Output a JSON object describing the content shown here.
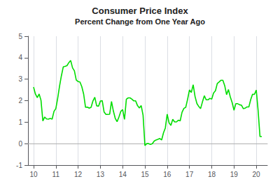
{
  "chart_data": {
    "type": "line",
    "title": "Consumer Price Index",
    "subtitle": "Percent Change from One Year Ago",
    "color": "#00dd00",
    "grid": "x",
    "xlim": [
      2009.75,
      2020.5
    ],
    "xticks": [
      {
        "value": 2010,
        "label": "10"
      },
      {
        "value": 2011,
        "label": "11"
      },
      {
        "value": 2012,
        "label": "12"
      },
      {
        "value": 2013,
        "label": "13"
      },
      {
        "value": 2014,
        "label": "14"
      },
      {
        "value": 2015,
        "label": "15"
      },
      {
        "value": 2016,
        "label": "16"
      },
      {
        "value": 2017,
        "label": "17"
      },
      {
        "value": 2018,
        "label": "18"
      },
      {
        "value": 2019,
        "label": "19"
      },
      {
        "value": 2020,
        "label": "20"
      }
    ],
    "ylim": [
      -1,
      5
    ],
    "yticks": [
      -1,
      0,
      1,
      2,
      3,
      4,
      5
    ],
    "x": [
      2010.0,
      2010.083,
      2010.167,
      2010.25,
      2010.333,
      2010.417,
      2010.5,
      2010.583,
      2010.667,
      2010.75,
      2010.833,
      2010.917,
      2011.0,
      2011.083,
      2011.167,
      2011.25,
      2011.333,
      2011.417,
      2011.5,
      2011.583,
      2011.667,
      2011.75,
      2011.833,
      2011.917,
      2012.0,
      2012.083,
      2012.167,
      2012.25,
      2012.333,
      2012.417,
      2012.5,
      2012.583,
      2012.667,
      2012.75,
      2012.833,
      2012.917,
      2013.0,
      2013.083,
      2013.167,
      2013.25,
      2013.333,
      2013.417,
      2013.5,
      2013.583,
      2013.667,
      2013.75,
      2013.833,
      2013.917,
      2014.0,
      2014.083,
      2014.167,
      2014.25,
      2014.333,
      2014.417,
      2014.5,
      2014.583,
      2014.667,
      2014.75,
      2014.833,
      2014.917,
      2015.0,
      2015.083,
      2015.167,
      2015.25,
      2015.333,
      2015.417,
      2015.5,
      2015.583,
      2015.667,
      2015.75,
      2015.833,
      2015.917,
      2016.0,
      2016.083,
      2016.167,
      2016.25,
      2016.333,
      2016.417,
      2016.5,
      2016.583,
      2016.667,
      2016.75,
      2016.833,
      2016.917,
      2017.0,
      2017.083,
      2017.167,
      2017.25,
      2017.333,
      2017.417,
      2017.5,
      2017.583,
      2017.667,
      2017.75,
      2017.833,
      2017.917,
      2018.0,
      2018.083,
      2018.167,
      2018.25,
      2018.333,
      2018.417,
      2018.5,
      2018.583,
      2018.667,
      2018.75,
      2018.833,
      2018.917,
      2019.0,
      2019.083,
      2019.167,
      2019.25,
      2019.333,
      2019.417,
      2019.5,
      2019.583,
      2019.667,
      2019.75,
      2019.833,
      2019.917,
      2020.0,
      2020.083,
      2020.167,
      2020.25
    ],
    "values": [
      2.63,
      2.31,
      2.14,
      2.31,
      2.02,
      1.05,
      1.24,
      1.15,
      1.14,
      1.17,
      1.14,
      1.5,
      1.63,
      2.11,
      2.68,
      3.16,
      3.57,
      3.6,
      3.63,
      3.77,
      3.87,
      3.53,
      3.39,
      2.96,
      2.89,
      2.87,
      2.65,
      2.3,
      1.69,
      1.7,
      1.65,
      1.69,
      1.99,
      2.16,
      1.76,
      1.74,
      1.98,
      2.0,
      1.47,
      1.36,
      1.36,
      1.37,
      1.96,
      1.52,
      1.18,
      1.02,
      1.24,
      1.5,
      1.58,
      1.13,
      2.07,
      2.13,
      2.13,
      2.07,
      1.99,
      1.99,
      1.77,
      1.66,
      1.77,
      1.32,
      -0.09,
      0.0,
      0.0,
      -0.04,
      0.0,
      0.12,
      0.17,
      0.2,
      0.24,
      0.17,
      0.5,
      0.73,
      1.37,
      0.97,
      0.85,
      1.13,
      1.01,
      1.01,
      1.09,
      1.06,
      1.46,
      1.64,
      1.69,
      2.07,
      2.5,
      2.38,
      2.74,
      2.2,
      1.87,
      1.73,
      1.63,
      1.94,
      2.23,
      2.04,
      2.04,
      2.11,
      2.07,
      2.36,
      2.46,
      2.8,
      2.87,
      2.95,
      2.95,
      2.7,
      2.28,
      2.52,
      2.18,
      1.91,
      1.55,
      1.86,
      1.86,
      1.81,
      1.79,
      1.63,
      1.65,
      1.71,
      1.71,
      2.05,
      2.3,
      2.29,
      2.49,
      1.54,
      0.33,
      0.33
    ]
  }
}
